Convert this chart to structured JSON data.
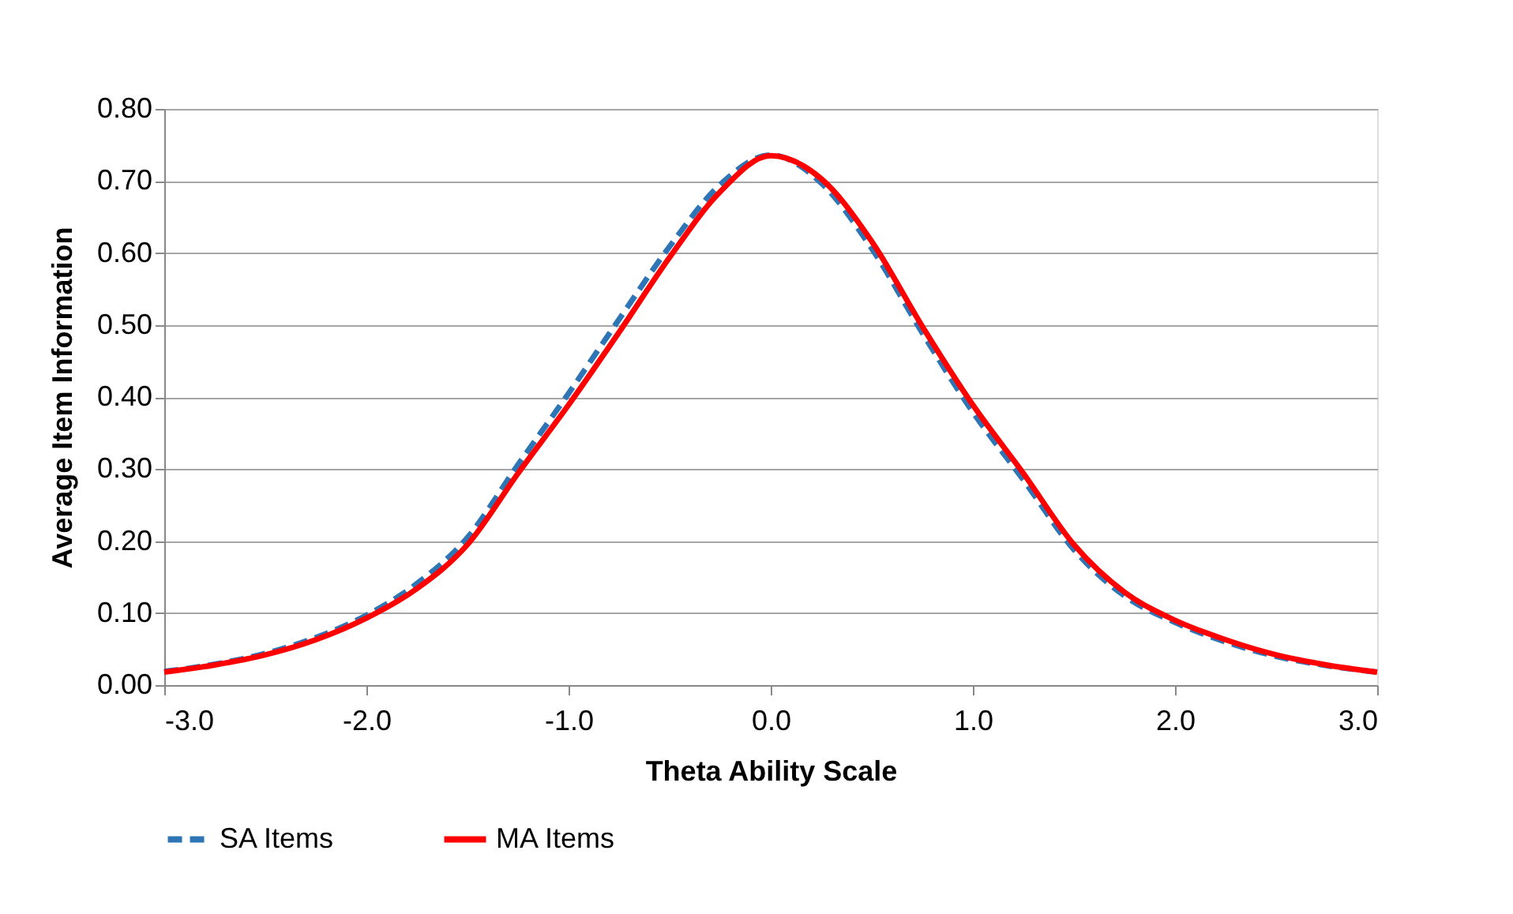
{
  "chart_data": {
    "type": "line",
    "xlabel": "Theta Ability Scale",
    "ylabel": "Average Item Information",
    "xlim": [
      -3,
      3
    ],
    "ylim": [
      0,
      0.8
    ],
    "xticks": [
      {
        "value": -3,
        "label": "-3.0"
      },
      {
        "value": -2,
        "label": "-2.0"
      },
      {
        "value": -1,
        "label": "-1.0"
      },
      {
        "value": 0,
        "label": "0.0"
      },
      {
        "value": 1,
        "label": "1.0"
      },
      {
        "value": 2,
        "label": "2.0"
      },
      {
        "value": 3,
        "label": "3.0"
      }
    ],
    "yticks": [
      {
        "value": 0,
        "label": "0.00"
      },
      {
        "value": 0.1,
        "label": "0.10"
      },
      {
        "value": 0.2,
        "label": "0.20"
      },
      {
        "value": 0.3,
        "label": "0.30"
      },
      {
        "value": 0.4,
        "label": "0.40"
      },
      {
        "value": 0.5,
        "label": "0.50"
      },
      {
        "value": 0.6,
        "label": "0.60"
      },
      {
        "value": 0.7,
        "label": "0.70"
      },
      {
        "value": 0.8,
        "label": "0.80"
      }
    ],
    "x": [
      -3,
      -2.75,
      -2.5,
      -2.25,
      -2,
      -1.75,
      -1.5,
      -1.25,
      -1,
      -0.75,
      -0.5,
      -0.25,
      0,
      0.25,
      0.5,
      0.75,
      1,
      1.25,
      1.5,
      1.75,
      2,
      2.25,
      2.5,
      2.75,
      3
    ],
    "series": [
      {
        "name": "SA Items",
        "color": "#2e75b6",
        "line_style": "dashed",
        "values": [
          0.019,
          0.029,
          0.044,
          0.066,
          0.097,
          0.141,
          0.205,
          0.306,
          0.405,
          0.508,
          0.609,
          0.695,
          0.736,
          0.697,
          0.606,
          0.489,
          0.379,
          0.285,
          0.188,
          0.124,
          0.087,
          0.06,
          0.04,
          0.027,
          0.018
        ]
      },
      {
        "name": "MA Items",
        "color": "#ff0000",
        "line_style": "solid",
        "values": [
          0.018,
          0.028,
          0.042,
          0.063,
          0.093,
          0.134,
          0.195,
          0.294,
          0.389,
          0.49,
          0.594,
          0.685,
          0.735,
          0.703,
          0.616,
          0.498,
          0.389,
          0.294,
          0.195,
          0.129,
          0.09,
          0.063,
          0.042,
          0.028,
          0.018
        ]
      }
    ],
    "grid": "y",
    "legend": "bottom",
    "marker": "none"
  }
}
